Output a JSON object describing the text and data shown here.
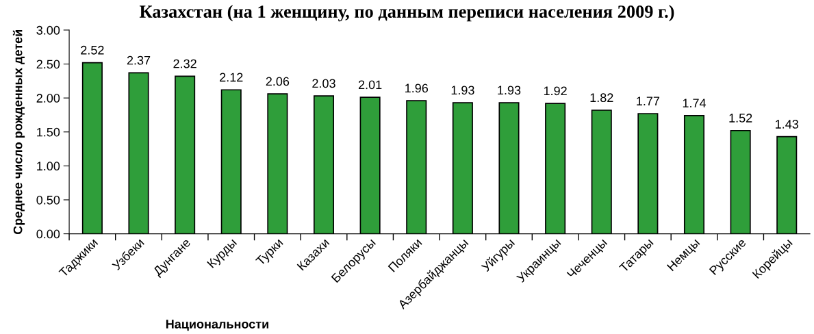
{
  "chart_data": {
    "type": "bar",
    "title": "Казахстан (на 1 женщину, по данным переписи населения 2009 г.)",
    "xlabel": "Национальности",
    "ylabel": "Среднее число рожденных детей",
    "categories": [
      "Таджики",
      "Узбеки",
      "Дунгане",
      "Курды",
      "Турки",
      "Казахи",
      "Белорусы",
      "Поляки",
      "Азербайджанцы",
      "Уйгуры",
      "Украинцы",
      "Чеченцы",
      "Татары",
      "Немцы",
      "Русские",
      "Корейцы"
    ],
    "values": [
      2.52,
      2.37,
      2.32,
      2.12,
      2.06,
      2.03,
      2.01,
      1.96,
      1.93,
      1.93,
      1.92,
      1.82,
      1.77,
      1.74,
      1.52,
      1.43
    ],
    "color": "#2f9e3a",
    "data_labels": true,
    "ylim": [
      0,
      3
    ],
    "yticks": [
      {
        "value": 0,
        "label": "0.00"
      },
      {
        "value": 0.5,
        "label": "0.50"
      },
      {
        "value": 1,
        "label": "1.00"
      },
      {
        "value": 1.5,
        "label": "1.50"
      },
      {
        "value": 2,
        "label": "2.00"
      },
      {
        "value": 2.5,
        "label": "2.50"
      },
      {
        "value": 3,
        "label": "3.00"
      }
    ],
    "grid": false,
    "legend": false
  }
}
